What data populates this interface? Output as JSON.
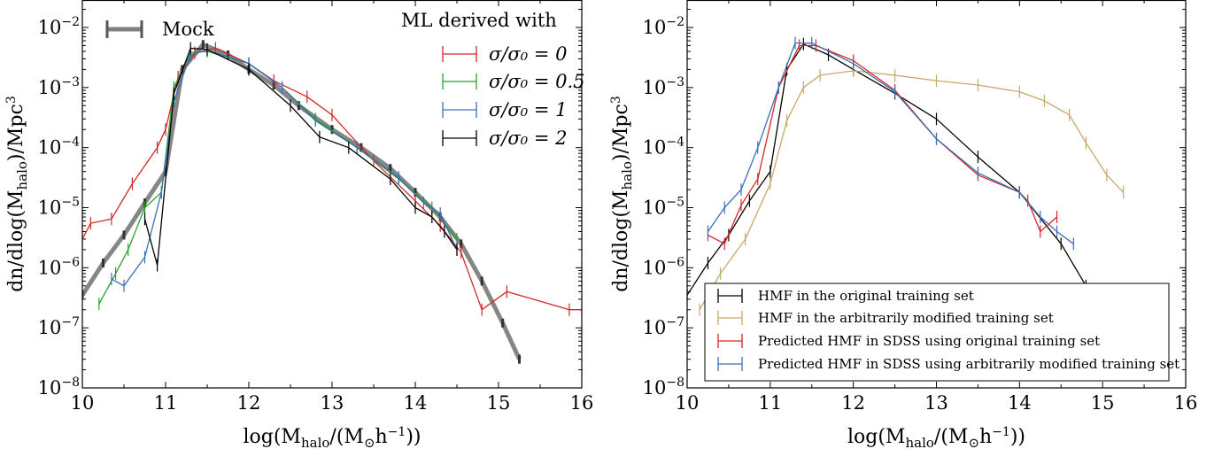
{
  "chart_data": [
    {
      "type": "line",
      "xlabel": "log(M_halo/(M_⊙h⁻¹))",
      "ylabel": "dn/dlog(M_halo)/Mpc³",
      "xlim": [
        10,
        16
      ],
      "ylim": [
        1e-08,
        0.03
      ],
      "yscale": "log",
      "xticks": [
        "10",
        "11",
        "12",
        "13",
        "14",
        "15",
        "16"
      ],
      "yticks": [
        "10⁻⁸",
        "10⁻⁷",
        "10⁻⁶",
        "10⁻⁵",
        "10⁻⁴",
        "10⁻³",
        "10⁻²"
      ],
      "legend_title": "ML derived with",
      "legend_placement": "top-right",
      "series": [
        {
          "name": "Mock",
          "color": "#808080",
          "width": 5,
          "x": [
            10.0,
            10.25,
            10.5,
            10.75,
            11.0,
            11.2,
            11.45,
            11.75,
            12.0,
            12.3,
            12.6,
            13.0,
            13.35,
            13.7,
            14.0,
            14.3,
            14.55,
            14.8,
            15.05,
            15.25
          ],
          "y": [
            3.5e-07,
            1.2e-06,
            3.5e-06,
            1.2e-05,
            4e-05,
            0.002,
            0.0052,
            0.0035,
            0.002,
            0.0011,
            0.0005,
            0.0002,
            0.0001,
            4.5e-05,
            1.8e-05,
            7e-06,
            2.5e-06,
            6e-07,
            1.2e-07,
            3e-08
          ]
        },
        {
          "name": "σ/σ₀ = 0",
          "color": "#d62728",
          "x": [
            10.0,
            10.1,
            10.35,
            10.6,
            10.9,
            11.0,
            11.15,
            11.35,
            11.6,
            12.0,
            12.3,
            12.7,
            13.0,
            13.5,
            14.0,
            14.3,
            14.55,
            14.8,
            15.1,
            15.85,
            16.0
          ],
          "y": [
            3e-06,
            5.5e-06,
            6.5e-06,
            2.5e-05,
            0.0001,
            0.0002,
            0.0015,
            0.0038,
            0.0045,
            0.0025,
            0.0013,
            0.0007,
            0.00035,
            6e-05,
            1.3e-05,
            5e-06,
            1.8e-06,
            2e-07,
            4e-07,
            2e-07,
            2e-07
          ]
        },
        {
          "name": "σ/σ₀ = 0.5",
          "color": "#2ca02c",
          "x": [
            10.2,
            10.4,
            10.55,
            10.75,
            10.95,
            11.1,
            11.3,
            11.5,
            12.0,
            12.4,
            12.8,
            13.3,
            13.8,
            14.2,
            14.5
          ],
          "y": [
            2.5e-07,
            8e-07,
            2e-06,
            1e-05,
            1.8e-05,
            0.001,
            0.0038,
            0.004,
            0.0025,
            0.001,
            0.0003,
            0.0001,
            3e-05,
            1e-05,
            3e-06
          ]
        },
        {
          "name": "σ/σ₀ = 1",
          "color": "#3b6fb6",
          "x": [
            10.35,
            10.5,
            10.75,
            10.95,
            11.1,
            11.3,
            11.5,
            12.0,
            12.4,
            12.8,
            13.3,
            13.8,
            14.1,
            14.3,
            14.5
          ],
          "y": [
            6.5e-07,
            5e-07,
            1.5e-06,
            1.8e-05,
            0.0006,
            0.0035,
            0.0042,
            0.0025,
            0.001,
            0.00028,
            0.0001,
            3.2e-05,
            1.2e-05,
            8e-06,
            2e-06
          ]
        },
        {
          "name": "σ/σ₀ = 2",
          "color": "#000000",
          "x": [
            10.75,
            10.9,
            11.1,
            11.3,
            11.5,
            12.0,
            12.5,
            12.85,
            13.2,
            13.7,
            14.0,
            14.2,
            14.35,
            14.5
          ],
          "y": [
            6.5e-06,
            1.1e-06,
            0.0008,
            0.0045,
            0.0043,
            0.002,
            0.0005,
            0.00015,
            0.0001,
            3e-05,
            1e-05,
            7e-06,
            4e-06,
            2e-06
          ]
        }
      ]
    },
    {
      "type": "line",
      "xlabel": "log(M_halo/(M_⊙h⁻¹))",
      "ylabel": "dn/dlog(M_halo)/Mpc³",
      "xlim": [
        10,
        16
      ],
      "ylim": [
        1e-08,
        0.03
      ],
      "yscale": "log",
      "xticks": [
        "10",
        "11",
        "12",
        "13",
        "14",
        "15",
        "16"
      ],
      "yticks": [
        "10⁻⁸",
        "10⁻⁷",
        "10⁻⁶",
        "10⁻⁵",
        "10⁻⁴",
        "10⁻³",
        "10⁻²"
      ],
      "legend_placement": "bottom-right",
      "series": [
        {
          "name": "HMF in the original training set",
          "color": "#000000",
          "x": [
            10.0,
            10.25,
            10.5,
            10.75,
            11.0,
            11.2,
            11.4,
            11.7,
            12.0,
            12.5,
            13.0,
            13.5,
            14.0,
            14.5,
            14.8,
            14.9
          ],
          "y": [
            3.5e-07,
            1.2e-06,
            3.5e-06,
            1.3e-05,
            4e-05,
            0.002,
            0.0053,
            0.0035,
            0.002,
            0.0008,
            0.0003,
            7e-05,
            1.8e-05,
            2.5e-06,
            5e-07,
            3e-07
          ]
        },
        {
          "name": "HMF in the arbitrarily modified training set",
          "color": "#c8a86a",
          "x": [
            10.15,
            10.4,
            10.7,
            11.0,
            11.2,
            11.4,
            11.6,
            12.0,
            12.5,
            13.0,
            13.5,
            14.0,
            14.3,
            14.6,
            14.8,
            15.05,
            15.25
          ],
          "y": [
            2e-07,
            8e-07,
            3e-06,
            2.5e-05,
            0.00028,
            0.001,
            0.0016,
            0.0019,
            0.0016,
            0.0013,
            0.0011,
            0.00085,
            0.0006,
            0.00035,
            0.00012,
            3.5e-05,
            1.8e-05
          ]
        },
        {
          "name": "Predicted HMF in SDSS using original training set",
          "color": "#d62728",
          "x": [
            10.25,
            10.45,
            10.65,
            10.85,
            11.1,
            11.35,
            11.55,
            12.0,
            12.5,
            13.0,
            13.5,
            14.0,
            14.1,
            14.25,
            14.45
          ],
          "y": [
            3.5e-06,
            2.5e-06,
            1.1e-05,
            3e-05,
            0.001,
            0.005,
            0.005,
            0.0028,
            0.0009,
            0.00014,
            3.5e-05,
            1.8e-05,
            1.3e-05,
            4e-06,
            7e-06
          ]
        },
        {
          "name": "Predicted HMF in SDSS using arbitrarily modified training set",
          "color": "#3b6fb6",
          "x": [
            10.25,
            10.45,
            10.65,
            10.85,
            11.1,
            11.3,
            11.5,
            12.0,
            12.5,
            13.0,
            13.5,
            14.0,
            14.25,
            14.45,
            14.65
          ],
          "y": [
            4e-06,
            1e-05,
            2e-05,
            0.0001,
            0.001,
            0.0055,
            0.0055,
            0.0025,
            0.00085,
            0.00014,
            3.8e-05,
            1.8e-05,
            7e-06,
            4e-06,
            2.5e-06
          ]
        }
      ]
    }
  ],
  "panels": [
    {
      "xlabel_main": "log(M",
      "xlabel_sub": "halo",
      "xlabel_mid": "/(M",
      "xlabel_sub2": "⊙",
      "xlabel_end": "h",
      "xlabel_sup": "−1",
      "xlabel_close": "))",
      "ylabel_pre": "dn/d",
      "ylabel_mid": "log(M",
      "ylabel_sub": "halo",
      "ylabel_post": ")/Mpc",
      "ylabel_sup": "3"
    },
    {
      "xlabel_main": "log(M",
      "xlabel_sub": "halo",
      "xlabel_mid": "/(M",
      "xlabel_sub2": "⊙",
      "xlabel_end": "h",
      "xlabel_sup": "−1",
      "xlabel_close": "))",
      "ylabel_pre": "dn/d",
      "ylabel_mid": "log(M",
      "ylabel_sub": "halo",
      "ylabel_post": ")/Mpc",
      "ylabel_sup": "3"
    }
  ],
  "ytick_base": "10",
  "ytick_exps": [
    "−8",
    "−7",
    "−6",
    "−5",
    "−4",
    "−3",
    "−2"
  ],
  "xticks": [
    "10",
    "11",
    "12",
    "13",
    "14",
    "15",
    "16"
  ]
}
